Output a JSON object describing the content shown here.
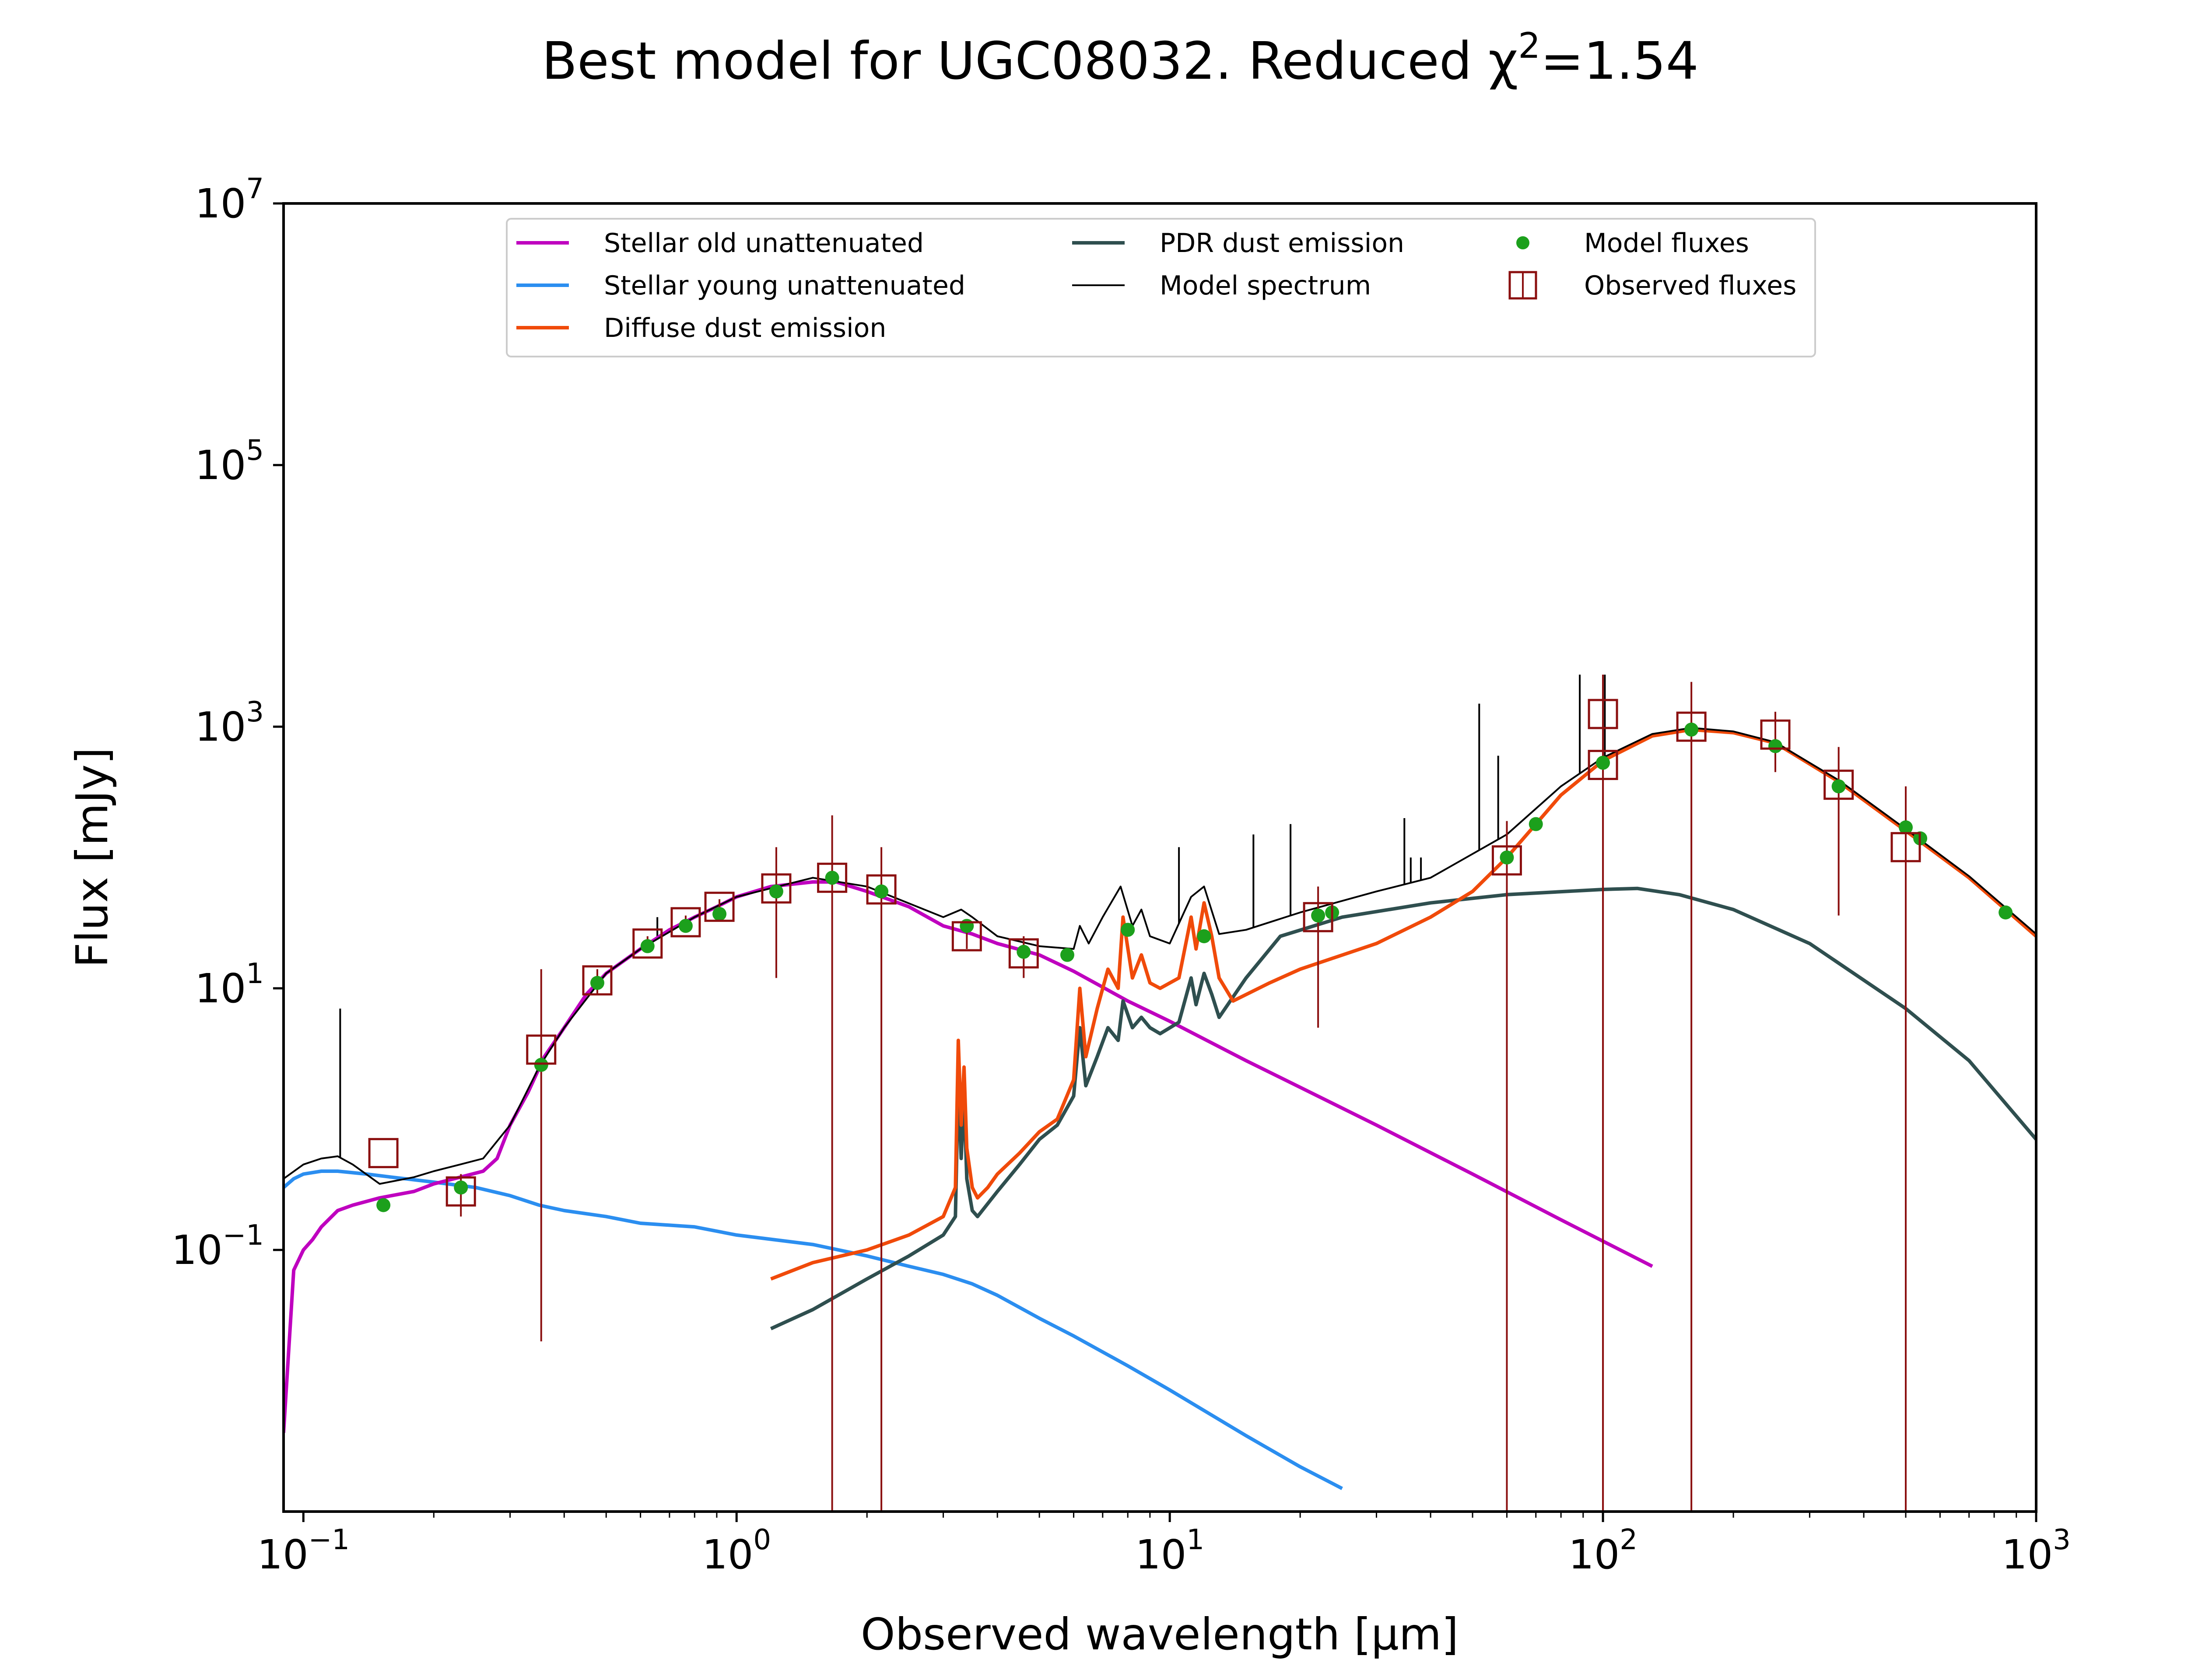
{
  "chart_data": {
    "type": "line",
    "title": "Best model for UGC08032. Reduced χ²=1.54",
    "title_parts": {
      "main": "Best model for UGC08032. Reduced χ",
      "sup": "2",
      "tail": "=1.54"
    },
    "xlabel": "Observed wavelength [μm]",
    "ylabel": "Flux [mJy]",
    "xscale": "log",
    "yscale": "log",
    "xlim": [
      0.09,
      1000
    ],
    "ylim": [
      0.001,
      10000000
    ],
    "grid": false,
    "legend_placement": "top-center",
    "xticks": [
      {
        "value": 0.1,
        "base": "10",
        "exp": "−1"
      },
      {
        "value": 1,
        "base": "10",
        "exp": "0"
      },
      {
        "value": 10,
        "base": "10",
        "exp": "1"
      },
      {
        "value": 100,
        "base": "10",
        "exp": "2"
      },
      {
        "value": 1000,
        "base": "10",
        "exp": "3"
      }
    ],
    "yticks": [
      {
        "value": 0.1,
        "base": "10",
        "exp": "−1"
      },
      {
        "value": 10,
        "base": "10",
        "exp": "1"
      },
      {
        "value": 1000,
        "base": "10",
        "exp": "3"
      },
      {
        "value": 100000,
        "base": "10",
        "exp": "5"
      },
      {
        "value": 10000000,
        "base": "10",
        "exp": "7"
      }
    ],
    "series": [
      {
        "name": "Stellar old unattenuated",
        "kind": "line",
        "color": "#bf00bf",
        "x": [
          0.09,
          0.095,
          0.1,
          0.105,
          0.11,
          0.12,
          0.13,
          0.15,
          0.18,
          0.2,
          0.23,
          0.26,
          0.28,
          0.3,
          0.33,
          0.36,
          0.4,
          0.45,
          0.5,
          0.6,
          0.7,
          0.8,
          0.9,
          1.0,
          1.2,
          1.5,
          1.7,
          2.0,
          2.5,
          3.0,
          3.5,
          4.0,
          5.0,
          6.0,
          7.0,
          8.0,
          10,
          15,
          20,
          30,
          50,
          80,
          130
        ],
        "y": [
          0.004,
          0.07,
          0.1,
          0.12,
          0.15,
          0.2,
          0.22,
          0.25,
          0.28,
          0.32,
          0.36,
          0.4,
          0.5,
          0.9,
          1.6,
          3.0,
          5.0,
          9.0,
          13.0,
          20.0,
          28.0,
          35.0,
          42.0,
          50.0,
          60.0,
          65.0,
          65.0,
          55.0,
          42.0,
          30.0,
          26.0,
          22.0,
          18.0,
          13.5,
          10.2,
          8.0,
          5.6,
          2.8,
          1.75,
          0.9,
          0.38,
          0.17,
          0.075
        ]
      },
      {
        "name": "Stellar young unattenuated",
        "kind": "line",
        "color": "#2b8ef0",
        "x": [
          0.09,
          0.095,
          0.1,
          0.11,
          0.12,
          0.14,
          0.16,
          0.2,
          0.25,
          0.3,
          0.35,
          0.4,
          0.5,
          0.6,
          0.8,
          1.0,
          1.5,
          2.0,
          2.5,
          3.0,
          3.5,
          4.0,
          5.0,
          6.0,
          8.0,
          10,
          15,
          20,
          25
        ],
        "y": [
          0.3,
          0.35,
          0.38,
          0.4,
          0.4,
          0.38,
          0.36,
          0.33,
          0.3,
          0.26,
          0.22,
          0.2,
          0.18,
          0.16,
          0.15,
          0.13,
          0.11,
          0.09,
          0.075,
          0.065,
          0.055,
          0.045,
          0.03,
          0.022,
          0.013,
          0.0085,
          0.0038,
          0.0022,
          0.0015
        ]
      },
      {
        "name": "Diffuse dust emission",
        "kind": "line",
        "color": "#f04a0a",
        "x": [
          1.2,
          1.5,
          2.0,
          2.5,
          3.0,
          3.2,
          3.25,
          3.3,
          3.35,
          3.4,
          3.5,
          3.6,
          3.8,
          4.0,
          4.5,
          5.0,
          5.5,
          6.0,
          6.2,
          6.4,
          6.8,
          7.2,
          7.6,
          7.8,
          8.2,
          8.6,
          9.0,
          9.5,
          10.5,
          11.2,
          11.5,
          12.0,
          12.5,
          13.0,
          14.0,
          17.0,
          20.0,
          30.0,
          40.0,
          50.0,
          60.0,
          70.0,
          80.0,
          100,
          130,
          160,
          200,
          250,
          350,
          500,
          700,
          1000
        ],
        "y": [
          0.06,
          0.08,
          0.1,
          0.13,
          0.18,
          0.3,
          4.0,
          0.9,
          2.5,
          0.6,
          0.3,
          0.25,
          0.3,
          0.38,
          0.55,
          0.8,
          1.0,
          2.0,
          10.0,
          3.0,
          7.0,
          14.0,
          10.0,
          35.0,
          12.0,
          18.0,
          11.0,
          10.0,
          12.0,
          35.0,
          20.0,
          45.0,
          25.0,
          12.0,
          8.0,
          11.0,
          14.0,
          22.0,
          35.0,
          55.0,
          100.0,
          180.0,
          300.0,
          550.0,
          850.0,
          950.0,
          900.0,
          750.0,
          380.0,
          160.0,
          70.0,
          25.0
        ]
      },
      {
        "name": "PDR dust emission",
        "kind": "line",
        "color": "#2f4f4f",
        "x": [
          1.2,
          1.5,
          2.0,
          2.5,
          3.0,
          3.2,
          3.25,
          3.3,
          3.35,
          3.4,
          3.5,
          3.6,
          4.0,
          4.5,
          5.0,
          5.5,
          6.0,
          6.2,
          6.4,
          6.8,
          7.2,
          7.6,
          7.8,
          8.2,
          8.6,
          9.0,
          9.5,
          10.5,
          11.2,
          11.5,
          12.0,
          12.5,
          13.0,
          15.0,
          18.0,
          25.0,
          40.0,
          60.0,
          100,
          120,
          150,
          200,
          300,
          500,
          700,
          1000
        ],
        "y": [
          0.025,
          0.035,
          0.06,
          0.09,
          0.13,
          0.18,
          2.0,
          0.5,
          1.5,
          0.35,
          0.2,
          0.18,
          0.28,
          0.45,
          0.7,
          0.9,
          1.5,
          5.0,
          1.8,
          3.0,
          5.0,
          4.0,
          8.0,
          5.0,
          6.0,
          5.0,
          4.5,
          5.5,
          12.0,
          7.5,
          13.0,
          9.0,
          6.0,
          12.0,
          25.0,
          35.0,
          45.0,
          52.0,
          57.0,
          58.0,
          52.0,
          40.0,
          22.0,
          7.0,
          2.8,
          0.7
        ]
      },
      {
        "name": "Model spectrum",
        "kind": "line",
        "color": "#000000",
        "x": [
          0.09,
          0.1,
          0.11,
          0.12,
          0.13,
          0.15,
          0.18,
          0.2,
          0.23,
          0.26,
          0.3,
          0.35,
          0.4,
          0.5,
          0.6,
          0.8,
          1.0,
          1.5,
          2.0,
          3.0,
          3.3,
          3.5,
          4.0,
          5.0,
          6.0,
          6.2,
          6.5,
          7.0,
          7.7,
          8.2,
          8.6,
          9.0,
          10.0,
          11.2,
          12.0,
          13.0,
          15.0,
          20.0,
          30.0,
          40.0,
          60.0,
          80.0,
          100,
          130,
          160,
          200,
          250,
          350,
          500,
          700,
          1000
        ],
        "y": [
          0.35,
          0.45,
          0.5,
          0.52,
          0.45,
          0.32,
          0.36,
          0.4,
          0.45,
          0.5,
          0.9,
          2.5,
          5.0,
          13.0,
          20.0,
          35.0,
          50.0,
          70.0,
          60.0,
          35.0,
          40.0,
          35.0,
          25.0,
          21.0,
          20.0,
          30.0,
          22.0,
          35.0,
          60.0,
          30.0,
          40.0,
          25.0,
          22.0,
          50.0,
          60.0,
          26.0,
          28.0,
          38.0,
          55.0,
          70.0,
          150.0,
          350.0,
          580.0,
          880.0,
          980.0,
          920.0,
          760.0,
          390.0,
          165.0,
          72.0,
          26.0
        ]
      },
      {
        "name": "Model fluxes",
        "kind": "points",
        "color": "#1ca01c",
        "x": [
          0.153,
          0.231,
          0.354,
          0.477,
          0.623,
          0.763,
          0.913,
          1.235,
          1.662,
          2.159,
          3.4,
          4.6,
          5.8,
          8.0,
          12.0,
          22.0,
          23.7,
          60.0,
          70.0,
          100.0,
          160.0,
          250.0,
          350.0,
          500.0,
          540.0,
          850.0
        ],
        "y": [
          0.22,
          0.3,
          2.6,
          11.0,
          21.0,
          30.0,
          37.0,
          55.0,
          70.0,
          55.0,
          30.0,
          19.0,
          18.0,
          28.0,
          25.0,
          36.0,
          38.0,
          100.0,
          180.0,
          530.0,
          950.0,
          710.0,
          350.0,
          170.0,
          140.0,
          38.0
        ]
      },
      {
        "name": "Observed fluxes",
        "kind": "errorbar",
        "color": "#8b1010",
        "x": [
          0.153,
          0.231,
          0.354,
          0.477,
          0.623,
          0.763,
          0.913,
          1.235,
          1.662,
          2.159,
          3.4,
          4.6,
          22.0,
          60.0,
          100.0,
          100.0,
          160.0,
          250.0,
          350.0,
          500.0
        ],
        "y": [
          0.55,
          0.28,
          3.4,
          11.5,
          22.0,
          32.0,
          42.0,
          58.0,
          70.0,
          57.0,
          25.0,
          18.5,
          35.0,
          95.0,
          1250.0,
          510.0,
          1000.0,
          870.0,
          360.0,
          120.0
        ],
        "ylow": [
          0.55,
          0.18,
          0.02,
          9.0,
          19.0,
          28.0,
          36.0,
          12.0,
          0.001,
          0.001,
          20.0,
          12.0,
          5.0,
          0.001,
          0.001,
          0.001,
          0.001,
          450.0,
          36.0,
          0.001
        ],
        "yhigh": [
          0.55,
          0.38,
          14.0,
          14.0,
          25.0,
          36.0,
          48.0,
          120.0,
          210.0,
          120.0,
          30.0,
          25.0,
          60.0,
          190.0,
          2500.0,
          2500.0,
          2200.0,
          1300.0,
          700.0,
          350.0
        ]
      }
    ],
    "emission_lines": [
      {
        "x": 0.1216,
        "top": 7.0
      },
      {
        "x": 0.6563,
        "top": 35.0
      },
      {
        "x": 34.8,
        "top": 200.0
      },
      {
        "x": 36.0,
        "top": 100.0
      },
      {
        "x": 38.0,
        "top": 100.0
      },
      {
        "x": 51.8,
        "top": 1500.0
      },
      {
        "x": 57.3,
        "top": 600.0
      },
      {
        "x": 88.4,
        "top": 2500.0
      },
      {
        "x": 101.0,
        "top": 2500.0
      },
      {
        "x": 19.0,
        "top": 180.0
      },
      {
        "x": 15.6,
        "top": 150.0
      },
      {
        "x": 10.5,
        "top": 120.0
      }
    ]
  }
}
